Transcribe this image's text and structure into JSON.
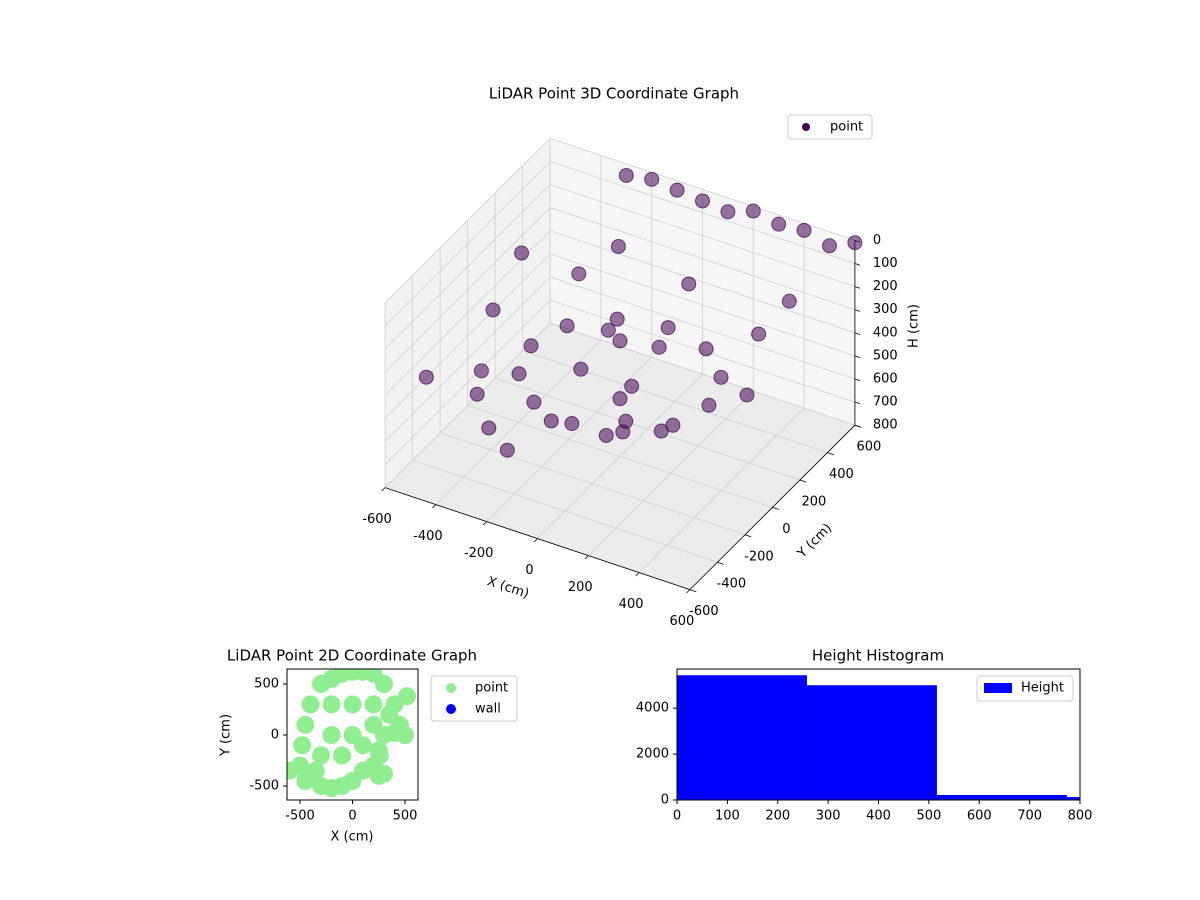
{
  "chart_data": [
    {
      "type": "scatter3d",
      "title": "LiDAR Point 3D Coordinate Graph",
      "x_label": "X (cm)",
      "y_label": "Y (cm)",
      "z_label": "H (cm)",
      "xlim": [
        -600,
        600
      ],
      "ylim": [
        -600,
        600
      ],
      "zlim": [
        0,
        800
      ],
      "xticks": [
        -600,
        -400,
        -200,
        0,
        200,
        400,
        600
      ],
      "yticks": [
        -600,
        -400,
        -200,
        0,
        200,
        400,
        600
      ],
      "zticks": [
        0,
        100,
        200,
        300,
        400,
        500,
        600,
        700,
        800
      ],
      "z_inverted": true,
      "legend": "upper right",
      "grid": true,
      "series": [
        {
          "name": "point",
          "color": "#440154",
          "x": [
            -300,
            -200,
            -100,
            0,
            100,
            200,
            300,
            400,
            500,
            600,
            350,
            303,
            175,
            0,
            -175,
            -303,
            -350,
            -303,
            -175,
            0,
            175,
            303,
            0,
            100,
            -100,
            100,
            -100,
            0,
            50,
            0,
            500,
            354,
            0,
            -354,
            -500,
            -354,
            0,
            354,
            -400,
            -300,
            -200,
            -600,
            -550,
            450,
            -250
          ],
          "y": [
            600,
            600,
            600,
            600,
            600,
            600,
            600,
            600,
            600,
            600,
            0,
            175,
            303,
            350,
            303,
            175,
            0,
            -175,
            -303,
            -350,
            -303,
            -175,
            0,
            100,
            100,
            -100,
            -100,
            0,
            -50,
            -100,
            0,
            354,
            500,
            354,
            0,
            -354,
            -500,
            -354,
            -300,
            -400,
            -450,
            -300,
            300,
            400,
            450
          ],
          "z": [
            50,
            30,
            40,
            50,
            60,
            20,
            40,
            30,
            60,
            10,
            450,
            450,
            450,
            450,
            450,
            450,
            450,
            450,
            450,
            450,
            450,
            450,
            300,
            350,
            350,
            400,
            400,
            550,
            600,
            650,
            350,
            350,
            350,
            350,
            350,
            350,
            350,
            350,
            500,
            550,
            580,
            500,
            300,
            200,
            250
          ]
        }
      ]
    },
    {
      "type": "scatter",
      "title": "LiDAR Point 2D Coordinate Graph",
      "x_label": "X (cm)",
      "y_label": "Y (cm)",
      "xlim": [
        -624,
        624
      ],
      "ylim": [
        -637,
        647
      ],
      "xticks": [
        -500,
        0,
        500
      ],
      "yticks": [
        -500,
        0,
        500
      ],
      "legend": "outside right",
      "series": [
        {
          "name": "point",
          "color": "#90ee90",
          "x": [
            -300,
            -200,
            -100,
            0,
            100,
            200,
            300,
            400,
            450,
            500,
            -400,
            -450,
            -480,
            -500,
            -450,
            -300,
            -200,
            -100,
            0,
            100,
            200,
            250,
            300,
            -200,
            0,
            200,
            -200,
            0,
            200,
            -300,
            -100,
            100,
            -600,
            250,
            300,
            260,
            520,
            350,
            400,
            -350
          ],
          "y": [
            500,
            550,
            600,
            620,
            620,
            600,
            500,
            300,
            100,
            0,
            300,
            100,
            -100,
            -300,
            -450,
            -500,
            -520,
            -500,
            -450,
            -350,
            -300,
            -150,
            0,
            300,
            300,
            300,
            0,
            0,
            100,
            -200,
            -200,
            -100,
            -350,
            -400,
            -380,
            -200,
            380,
            200,
            20,
            -350
          ]
        },
        {
          "name": "wall",
          "color": "#0000ff",
          "x": [],
          "y": []
        }
      ]
    },
    {
      "type": "histogram",
      "title": "Height Histogram",
      "bins": [
        0,
        258,
        516,
        774,
        1032
      ],
      "values": [
        5435,
        5000,
        217,
        130
      ],
      "color": "#0000ff",
      "name": "Height",
      "xlim": [
        0,
        800
      ],
      "ylim": [
        0,
        5707
      ],
      "xticks": [
        0,
        100,
        200,
        300,
        400,
        500,
        600,
        700,
        800
      ],
      "yticks": [
        0,
        2000,
        4000
      ],
      "legend": "upper right"
    }
  ]
}
